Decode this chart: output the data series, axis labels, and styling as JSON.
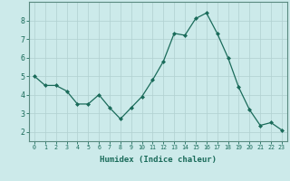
{
  "x": [
    0,
    1,
    2,
    3,
    4,
    5,
    6,
    7,
    8,
    9,
    10,
    11,
    12,
    13,
    14,
    15,
    16,
    17,
    18,
    19,
    20,
    21,
    22,
    23
  ],
  "y": [
    5.0,
    4.5,
    4.5,
    4.2,
    3.5,
    3.5,
    4.0,
    3.3,
    2.7,
    3.3,
    3.9,
    4.8,
    5.8,
    7.3,
    7.2,
    8.1,
    8.4,
    7.3,
    6.0,
    4.4,
    3.2,
    2.35,
    2.5,
    2.1
  ],
  "line_color": "#1a6b5a",
  "marker": "D",
  "marker_size": 2.0,
  "bg_color": "#cceaea",
  "grid_color": "#b0d0d0",
  "xlabel": "Humidex (Indice chaleur)",
  "xlim": [
    -0.5,
    23.5
  ],
  "ylim": [
    1.5,
    9.0
  ],
  "yticks": [
    2,
    3,
    4,
    5,
    6,
    7,
    8
  ],
  "xticks": [
    0,
    1,
    2,
    3,
    4,
    5,
    6,
    7,
    8,
    9,
    10,
    11,
    12,
    13,
    14,
    15,
    16,
    17,
    18,
    19,
    20,
    21,
    22,
    23
  ],
  "tick_color": "#1a6b5a",
  "label_color": "#1a6b5a",
  "axis_color": "#5a8a80",
  "xtick_fontsize": 4.8,
  "ytick_fontsize": 6.0,
  "xlabel_fontsize": 6.5
}
